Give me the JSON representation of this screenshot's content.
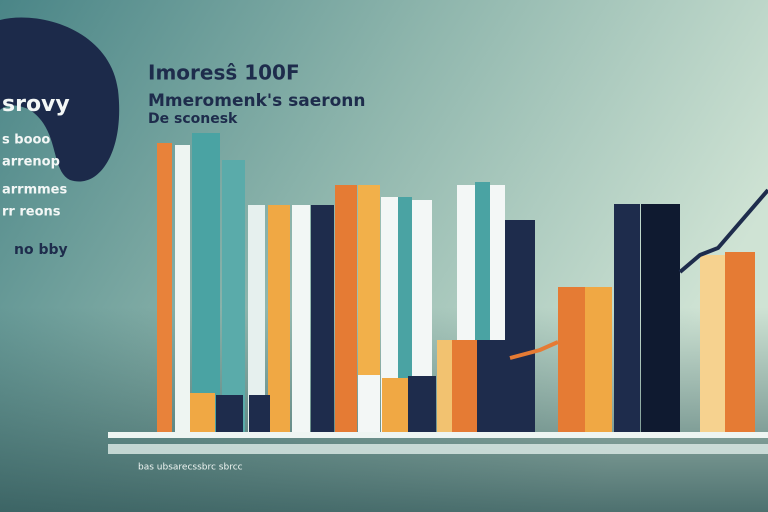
{
  "header": {
    "title": "Imoresŝ 100F",
    "subtitle": "Mmeromenk's saeronn",
    "note": "De  sconesk"
  },
  "side": {
    "heading": "srovy",
    "lines": [
      "s booo",
      "arrenop",
      "arrmmes",
      "rr reons"
    ],
    "footer": "no bby"
  },
  "footer": "bas ubsarecssbrc sbrcc"
}
